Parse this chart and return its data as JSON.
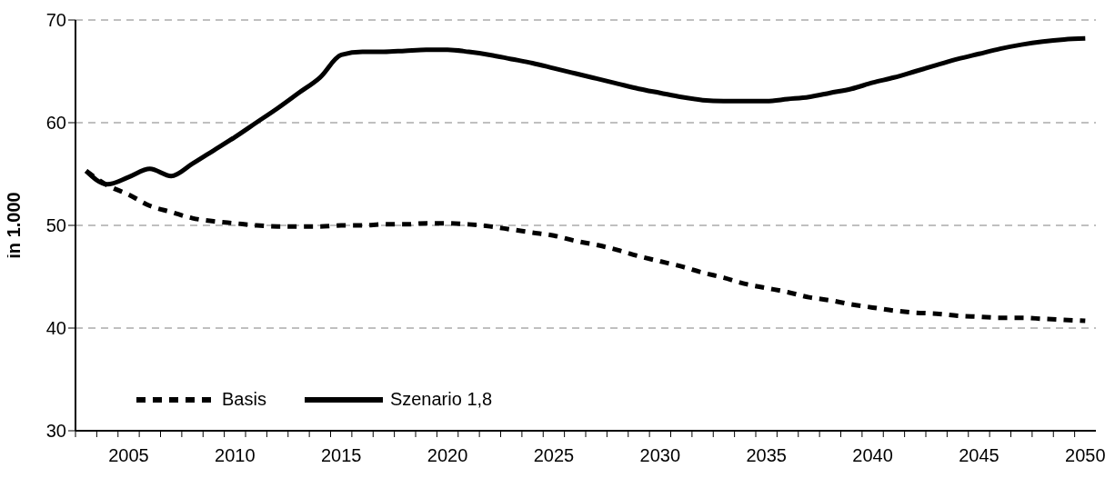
{
  "chart_data": {
    "type": "line",
    "ylabel": "in 1.000",
    "categories": [
      null,
      null,
      "2005",
      null,
      null,
      null,
      null,
      "2010",
      null,
      null,
      null,
      null,
      "2015",
      null,
      null,
      null,
      null,
      "2020",
      null,
      null,
      null,
      null,
      "2025",
      null,
      null,
      null,
      null,
      "2030",
      null,
      null,
      null,
      null,
      "2035",
      null,
      null,
      null,
      null,
      "2040",
      null,
      null,
      null,
      null,
      "2045",
      null,
      null,
      null,
      null,
      "2050"
    ],
    "series": [
      {
        "name": "Basis",
        "color": "#000000",
        "line_style": "dashed",
        "values": [
          55.3,
          53.9,
          53.0,
          51.9,
          51.3,
          50.7,
          50.4,
          50.2,
          50.0,
          49.9,
          49.9,
          49.9,
          50.0,
          50.0,
          50.1,
          50.1,
          50.2,
          50.2,
          50.1,
          49.9,
          49.6,
          49.3,
          49.0,
          48.5,
          48.1,
          47.6,
          47.0,
          46.5,
          46.0,
          45.4,
          44.9,
          44.3,
          43.9,
          43.5,
          43.0,
          42.7,
          42.3,
          42.0,
          41.7,
          41.5,
          41.4,
          41.2,
          41.1,
          41.0,
          41.0,
          40.9,
          40.8,
          40.7
        ]
      },
      {
        "name": "Szenario 1,8",
        "color": "#000000",
        "line_style": "solid",
        "values": [
          55.3,
          54.0,
          54.7,
          55.5,
          54.8,
          56.0,
          57.3,
          58.6,
          60.0,
          61.4,
          62.9,
          64.4,
          66.6,
          66.9,
          66.9,
          67.0,
          67.1,
          67.1,
          66.9,
          66.6,
          66.2,
          65.8,
          65.3,
          64.8,
          64.3,
          63.8,
          63.3,
          62.9,
          62.5,
          62.2,
          62.1,
          62.1,
          62.1,
          62.3,
          62.5,
          62.9,
          63.3,
          63.9,
          64.4,
          65.0,
          65.6,
          66.2,
          66.7,
          67.2,
          67.6,
          67.9,
          68.1,
          68.2
        ]
      }
    ],
    "ylim": [
      30,
      70
    ],
    "yticks": [
      30,
      40,
      50,
      60,
      70
    ],
    "grid": "y",
    "legend": "bottom left",
    "marker": "none"
  }
}
